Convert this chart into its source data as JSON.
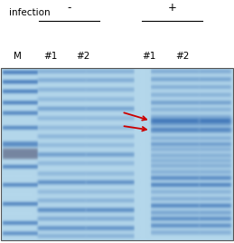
{
  "fig_width": 2.59,
  "fig_height": 2.68,
  "dpi": 100,
  "outer_bg": "#ffffff",
  "title_label": "infection",
  "minus_label": "-",
  "plus_label": "+",
  "lane_labels": [
    "M",
    "#1",
    "#2",
    "#1",
    "#2"
  ],
  "label_fontsize": 7.5,
  "arrow_color": "#cc0000",
  "gel_bg": [
    180,
    215,
    235
  ],
  "band_color": [
    30,
    90,
    170
  ],
  "marker_gray_color": [
    100,
    110,
    140
  ]
}
